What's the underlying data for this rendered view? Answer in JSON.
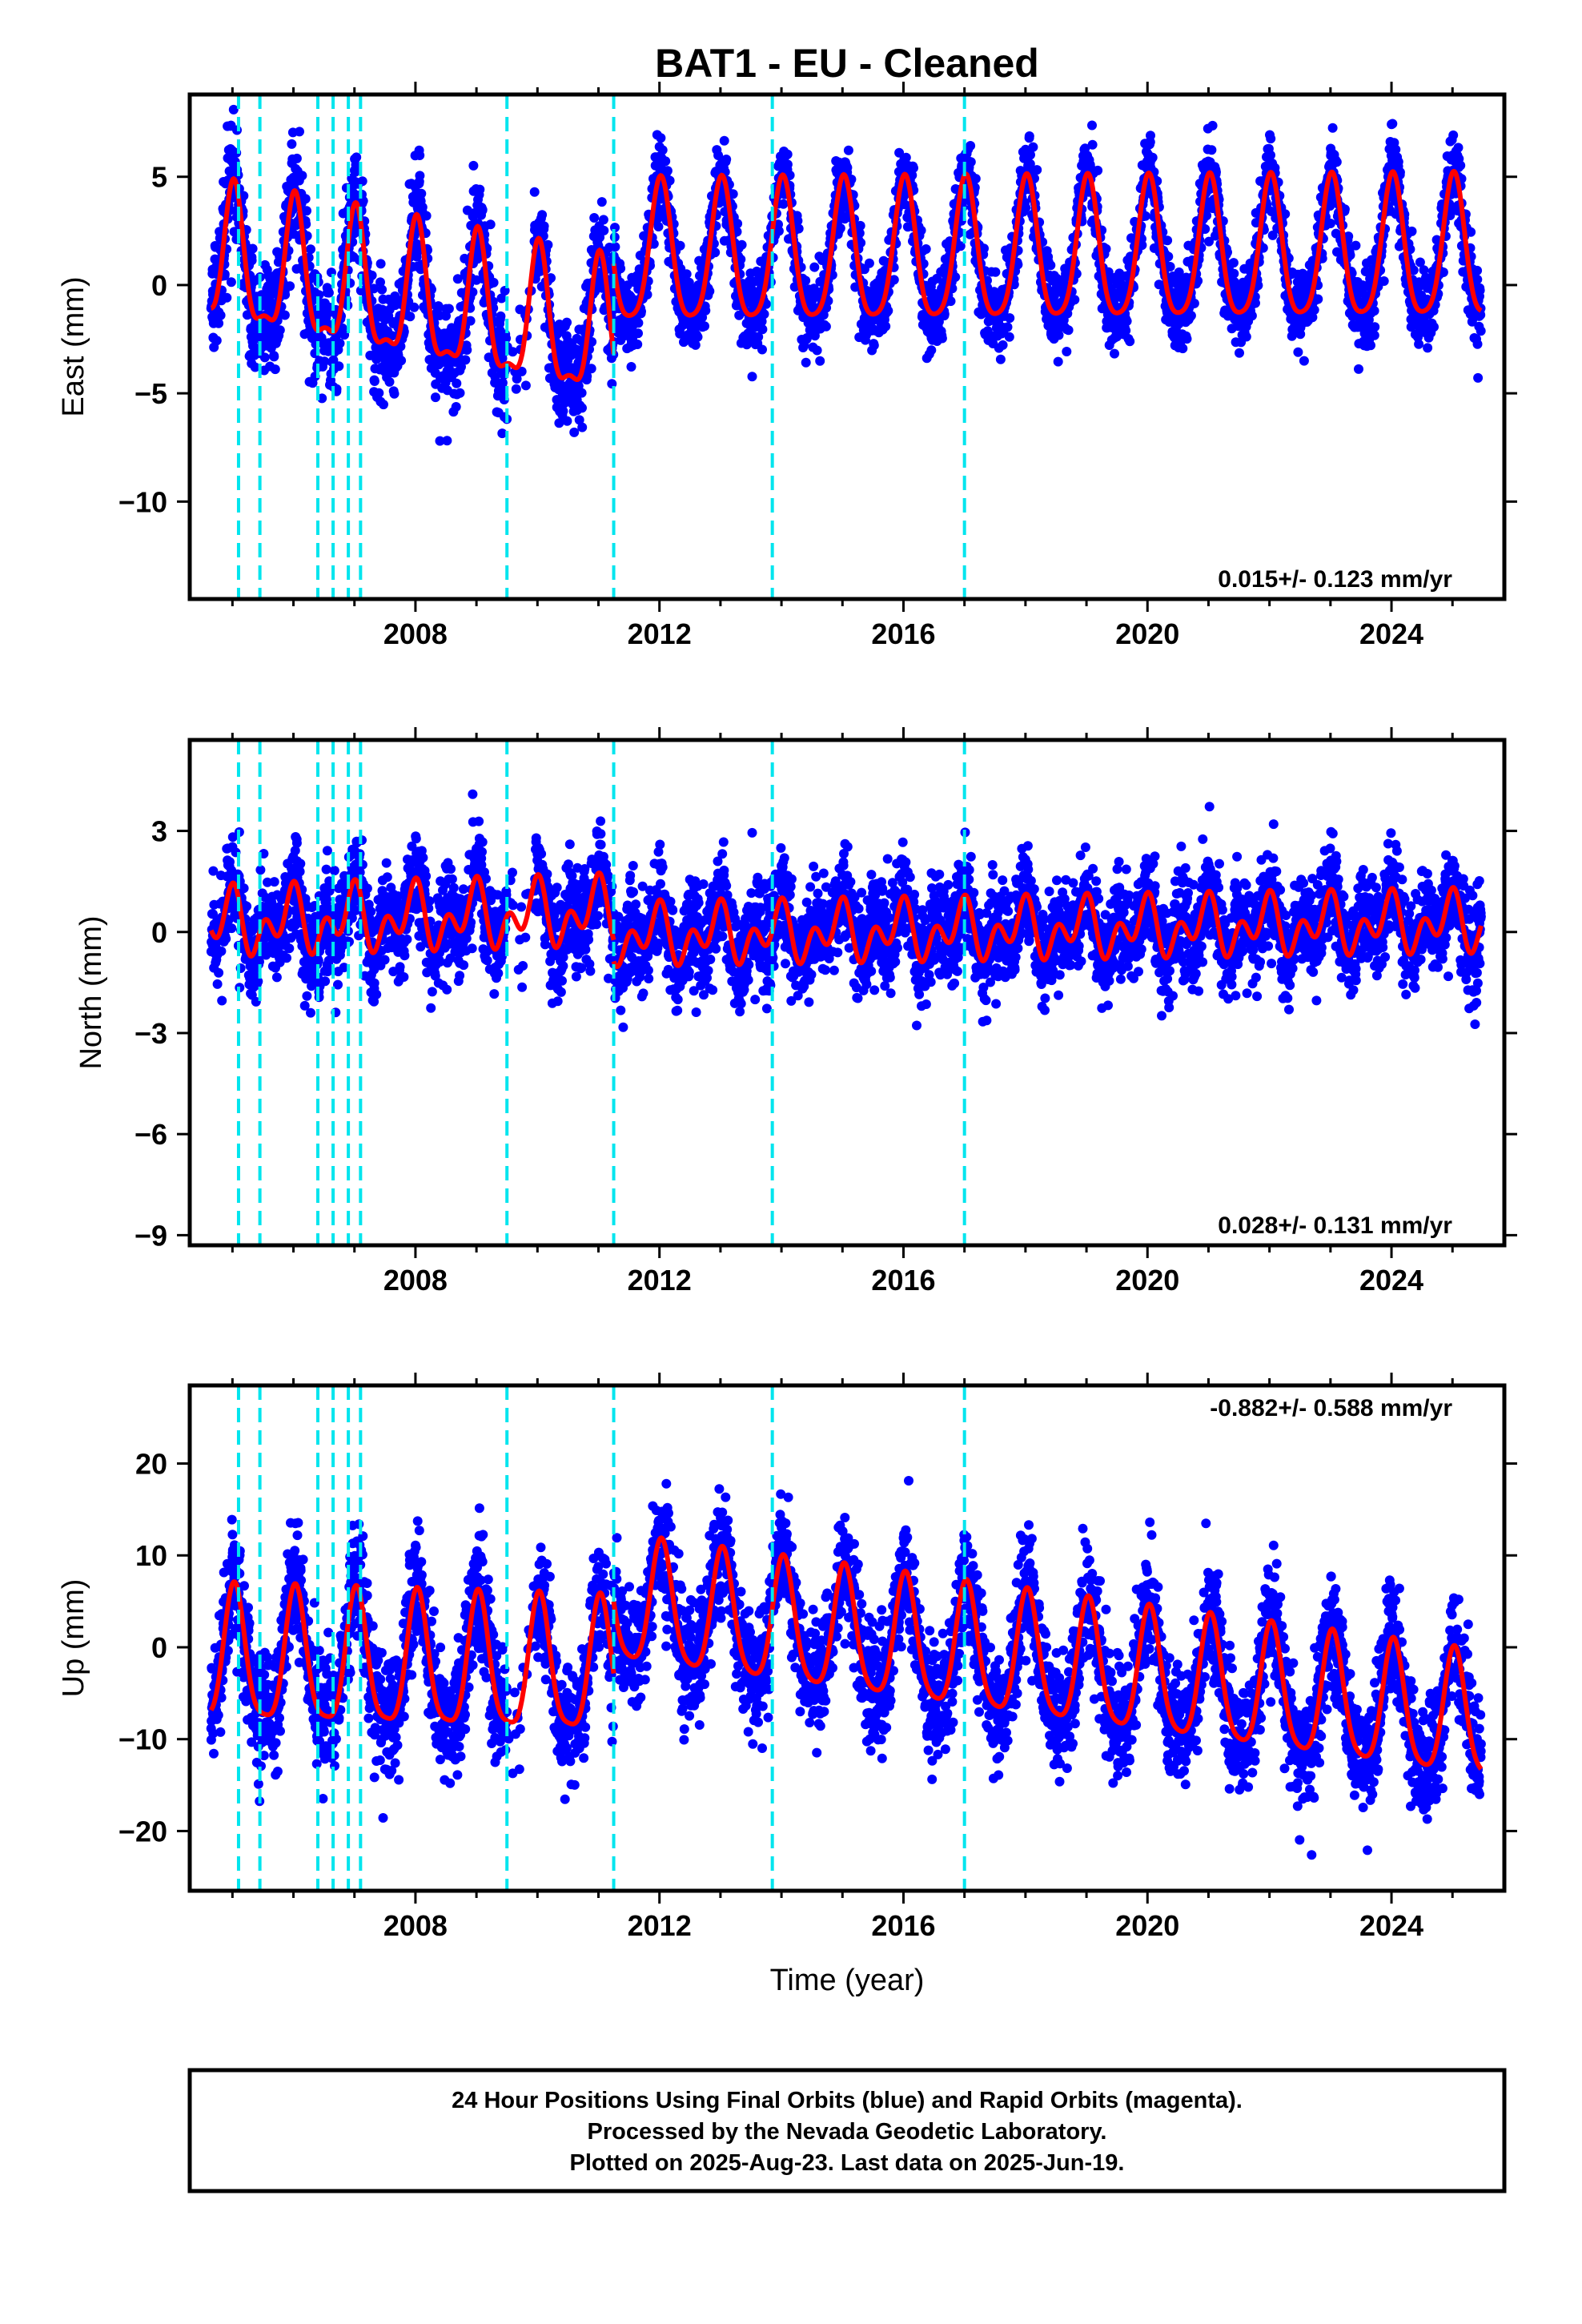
{
  "title": "BAT1  - EU - Cleaned",
  "chart_data": [
    {
      "type": "scatter",
      "panel": "east",
      "ylabel": "East (mm)",
      "xlabel": "",
      "xlim": [
        2004.3,
        2025.85
      ],
      "ylim": [
        -14.5,
        8.8
      ],
      "xticks": [
        2008,
        2012,
        2016,
        2020,
        2024
      ],
      "yticks": [
        5,
        0,
        -5,
        -10
      ],
      "ytick_labels": [
        "5",
        "0",
        "−5",
        "−10"
      ],
      "rate": "0.015+/- 0.123 mm/yr",
      "offsets": [
        2005.1,
        2005.45,
        2006.4,
        2006.65,
        2006.9,
        2007.1,
        2009.5,
        2011.25,
        2013.85,
        2017.0
      ],
      "segments": [
        {
          "start": 2004.65,
          "end": 2011.25,
          "offset": -3.0,
          "trend": -0.55,
          "annual_cos": 3.0,
          "annual_sin": 0.4,
          "semi_cos": 1.0,
          "semi_sin": 0.3,
          "scatter": 2.1
        },
        {
          "start": 2011.25,
          "end": 2025.47,
          "offset": 1.2,
          "trend": 0.015,
          "annual_cos": 3.2,
          "annual_sin": 0.4,
          "semi_cos": 0.6,
          "semi_sin": 0.2,
          "scatter": 1.5
        }
      ],
      "series": [
        {
          "name": "Final Orbits",
          "role": "points",
          "color": "#0000ff"
        },
        {
          "name": "model fit",
          "role": "fit",
          "color": "#ff0000"
        }
      ]
    },
    {
      "type": "scatter",
      "panel": "north",
      "ylabel": "North (mm)",
      "xlabel": "",
      "xlim": [
        2004.3,
        2025.85
      ],
      "ylim": [
        -9.3,
        5.7
      ],
      "xticks": [
        2008,
        2012,
        2016,
        2020,
        2024
      ],
      "yticks": [
        3,
        0,
        -3,
        -6,
        -9
      ],
      "ytick_labels": [
        "3",
        "0",
        "−3",
        "−6",
        "−9"
      ],
      "rate": "0.028+/- 0.131 mm/yr",
      "offsets": [
        2005.1,
        2005.45,
        2006.4,
        2006.65,
        2006.9,
        2007.1,
        2009.5,
        2011.25,
        2013.85,
        2017.0
      ],
      "segments": [
        {
          "start": 2004.65,
          "end": 2011.25,
          "offset": 0.6,
          "trend": 0.05,
          "annual_cos": 0.6,
          "annual_sin": -0.2,
          "semi_cos": 0.6,
          "semi_sin": 0.2,
          "scatter": 1.2
        },
        {
          "start": 2011.25,
          "end": 2025.47,
          "offset": -0.1,
          "trend": 0.028,
          "annual_cos": 0.5,
          "annual_sin": -0.2,
          "semi_cos": 0.55,
          "semi_sin": 0.2,
          "scatter": 1.15
        }
      ],
      "series": [
        {
          "name": "Final Orbits",
          "role": "points",
          "color": "#0000ff"
        },
        {
          "name": "model fit",
          "role": "fit",
          "color": "#ff0000"
        }
      ]
    },
    {
      "type": "scatter",
      "panel": "up",
      "ylabel": "Up (mm)",
      "xlabel": "Time (year)",
      "xlim": [
        2004.3,
        2025.85
      ],
      "ylim": [
        -26.5,
        28.5
      ],
      "xticks": [
        2008,
        2012,
        2016,
        2020,
        2024
      ],
      "yticks": [
        20,
        10,
        0,
        -10,
        -20
      ],
      "ytick_labels": [
        "20",
        "10",
        "0",
        "−10",
        "−20"
      ],
      "rate": "-0.882+/- 0.588 mm/yr",
      "offsets": [
        2005.1,
        2005.45,
        2006.4,
        2006.65,
        2006.9,
        2007.1,
        2009.5,
        2011.25,
        2013.85,
        2017.0
      ],
      "segments": [
        {
          "start": 2004.65,
          "end": 2011.25,
          "offset": -3.0,
          "trend": -0.2,
          "annual_cos": 7.0,
          "annual_sin": 1.5,
          "semi_cos": 1.5,
          "semi_sin": 0.5,
          "scatter": 5.2
        },
        {
          "start": 2011.25,
          "end": 2025.47,
          "offset": 4.0,
          "trend": -0.9,
          "annual_cos": 6.5,
          "annual_sin": 1.5,
          "semi_cos": 1.2,
          "semi_sin": 0.4,
          "scatter": 5.0
        }
      ],
      "series": [
        {
          "name": "Final Orbits",
          "role": "points",
          "color": "#0000ff"
        },
        {
          "name": "model fit",
          "role": "fit",
          "color": "#ff0000"
        }
      ]
    }
  ],
  "footer": {
    "line1": "24 Hour Positions Using Final Orbits (blue) and Rapid Orbits (magenta).",
    "line2": "Processed by the Nevada Geodetic Laboratory.",
    "line3": "Plotted on 2025-Aug-23. Last data on 2025-Jun-19."
  },
  "colors": {
    "points": "#0000ff",
    "fit": "#ff0000",
    "offset_line": "#00e5ee",
    "frame": "#000000"
  }
}
